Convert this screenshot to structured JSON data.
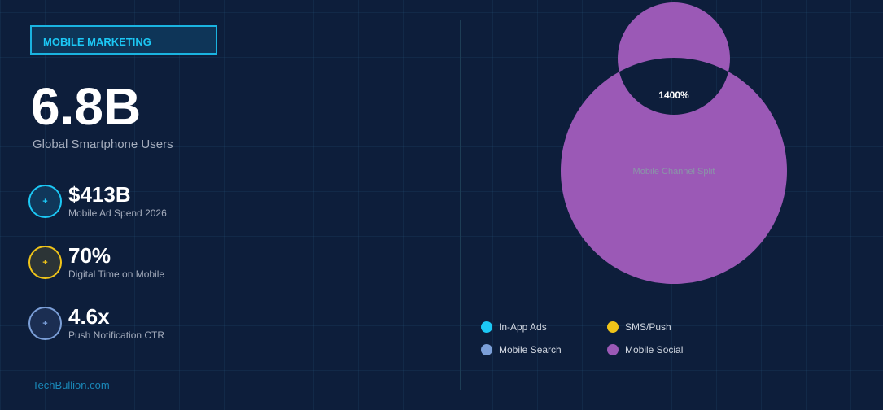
{
  "badge": "MOBILE MARKETING",
  "headline": {
    "value": "6.8B",
    "label": "Global Smartphone Users"
  },
  "stats": [
    {
      "value": "$413B",
      "label": "Mobile Ad Spend 2026",
      "color": "#1cc8f5",
      "icon": "plus-icon"
    },
    {
      "value": "70%",
      "label": "Digital Time on Mobile",
      "color": "#f0c419",
      "icon": "plus-icon"
    },
    {
      "value": "4.6x",
      "label": "Push Notification CTR",
      "color": "#7b9fd8",
      "icon": "plus-icon"
    }
  ],
  "brand": "TechBullion.com",
  "chart_data": {
    "type": "pie",
    "center_label": "Mobile Channel Split",
    "categories": [
      "In-App Ads",
      "SMS/Push",
      "Mobile Search",
      "Mobile Social"
    ],
    "colors": [
      "#1cc8f5",
      "#f0c419",
      "#7b9fd8",
      "#9b59b6"
    ],
    "values": [
      0,
      0,
      0,
      1400
    ],
    "data_labels": [
      "",
      "",
      "",
      "1400%"
    ],
    "legend": "bottom"
  }
}
